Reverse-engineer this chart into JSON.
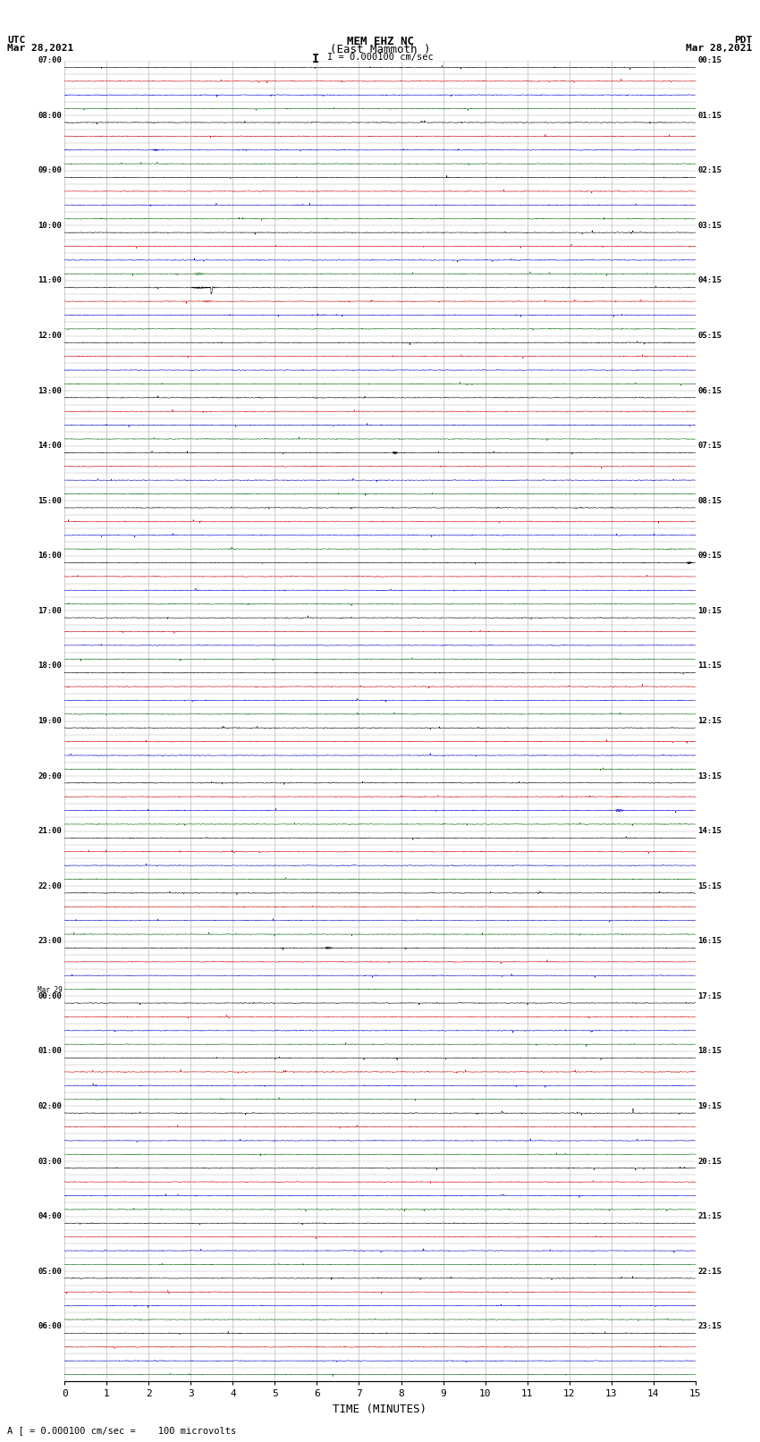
{
  "title_line1": "MEM EHZ NC",
  "title_line2": "(East Mammoth )",
  "title_line3": "I = 0.000100 cm/sec",
  "xlabel": "TIME (MINUTES)",
  "footnote": "A [ = 0.000100 cm/sec =    100 microvolts",
  "x_min": 0,
  "x_max": 15,
  "x_ticks": [
    0,
    1,
    2,
    3,
    4,
    5,
    6,
    7,
    8,
    9,
    10,
    11,
    12,
    13,
    14,
    15
  ],
  "background_color": "#ffffff",
  "trace_colors": [
    "black",
    "#cc0000",
    "#0000cc",
    "#006600"
  ],
  "utc_labels": [
    "07:00",
    "",
    "",
    "",
    "08:00",
    "",
    "",
    "",
    "09:00",
    "",
    "",
    "",
    "10:00",
    "",
    "",
    "",
    "11:00",
    "",
    "",
    "",
    "12:00",
    "",
    "",
    "",
    "13:00",
    "",
    "",
    "",
    "14:00",
    "",
    "",
    "",
    "15:00",
    "",
    "",
    "",
    "16:00",
    "",
    "",
    "",
    "17:00",
    "",
    "",
    "",
    "18:00",
    "",
    "",
    "",
    "19:00",
    "",
    "",
    "",
    "20:00",
    "",
    "",
    "",
    "21:00",
    "",
    "",
    "",
    "22:00",
    "",
    "",
    "",
    "23:00",
    "",
    "",
    "",
    "Mar 29\n00:00",
    "",
    "",
    "",
    "01:00",
    "",
    "",
    "",
    "02:00",
    "",
    "",
    "",
    "03:00",
    "",
    "",
    "",
    "04:00",
    "",
    "",
    "",
    "05:00",
    "",
    "",
    "",
    "06:00",
    "",
    "",
    ""
  ],
  "pdt_labels": [
    "00:15",
    "",
    "",
    "",
    "01:15",
    "",
    "",
    "",
    "02:15",
    "",
    "",
    "",
    "03:15",
    "",
    "",
    "",
    "04:15",
    "",
    "",
    "",
    "05:15",
    "",
    "",
    "",
    "06:15",
    "",
    "",
    "",
    "07:15",
    "",
    "",
    "",
    "08:15",
    "",
    "",
    "",
    "09:15",
    "",
    "",
    "",
    "10:15",
    "",
    "",
    "",
    "11:15",
    "",
    "",
    "",
    "12:15",
    "",
    "",
    "",
    "13:15",
    "",
    "",
    "",
    "14:15",
    "",
    "",
    "",
    "15:15",
    "",
    "",
    "",
    "16:15",
    "",
    "",
    "",
    "17:15",
    "",
    "",
    "",
    "18:15",
    "",
    "",
    "",
    "19:15",
    "",
    "",
    "",
    "20:15",
    "",
    "",
    "",
    "21:15",
    "",
    "",
    "",
    "22:15",
    "",
    "",
    "",
    "23:15",
    "",
    "",
    ""
  ],
  "num_rows": 96,
  "fig_width": 8.5,
  "fig_height": 16.13,
  "dpi": 100,
  "grid_color": "#aaaaaa"
}
